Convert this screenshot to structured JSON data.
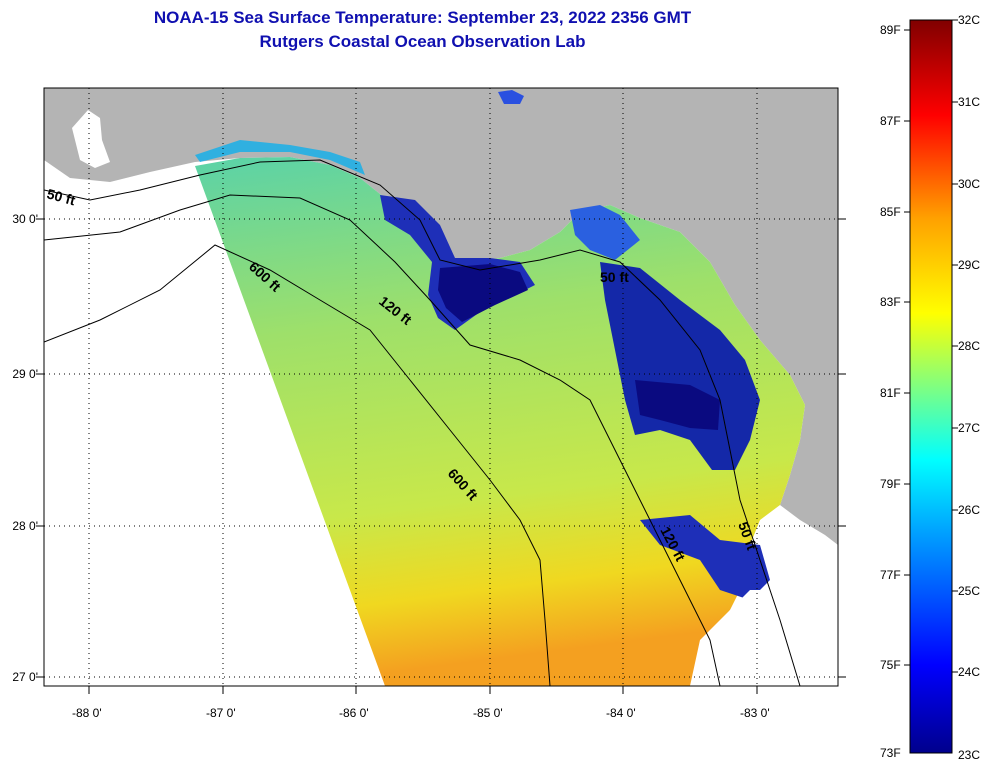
{
  "title": {
    "line1": "NOAA-15 Sea Surface Temperature:  September 23, 2022 2356 GMT",
    "line2": "Rutgers Coastal Ocean Observation Lab"
  },
  "map": {
    "lat_labels": [
      "30 0'",
      "29 0'",
      "28 0'",
      "27 0'"
    ],
    "lon_labels": [
      "-88 0'",
      "-87 0'",
      "-86 0'",
      "-85 0'",
      "-84 0'",
      "-83 0'"
    ],
    "contour_labels": [
      "50 ft",
      "600 ft",
      "120 ft",
      "50 ft",
      "600 ft",
      "120 ft",
      "50 ft"
    ],
    "colors": {
      "land": "#b4b4b4",
      "no_data": "#ffffff",
      "title": "#1010b0"
    }
  },
  "colorbar": {
    "fahrenheit_labels": [
      "89F",
      "87F",
      "85F",
      "83F",
      "81F",
      "79F",
      "77F",
      "75F",
      "73F"
    ],
    "celsius_labels": [
      "32C",
      "31C",
      "30C",
      "29C",
      "28C",
      "27C",
      "26C",
      "25C",
      "24C",
      "23C"
    ],
    "colors": [
      "#00008c",
      "#0000ff",
      "#00a0ff",
      "#00ffff",
      "#80ff80",
      "#ffff00",
      "#ffa000",
      "#ff0000",
      "#800000"
    ]
  }
}
